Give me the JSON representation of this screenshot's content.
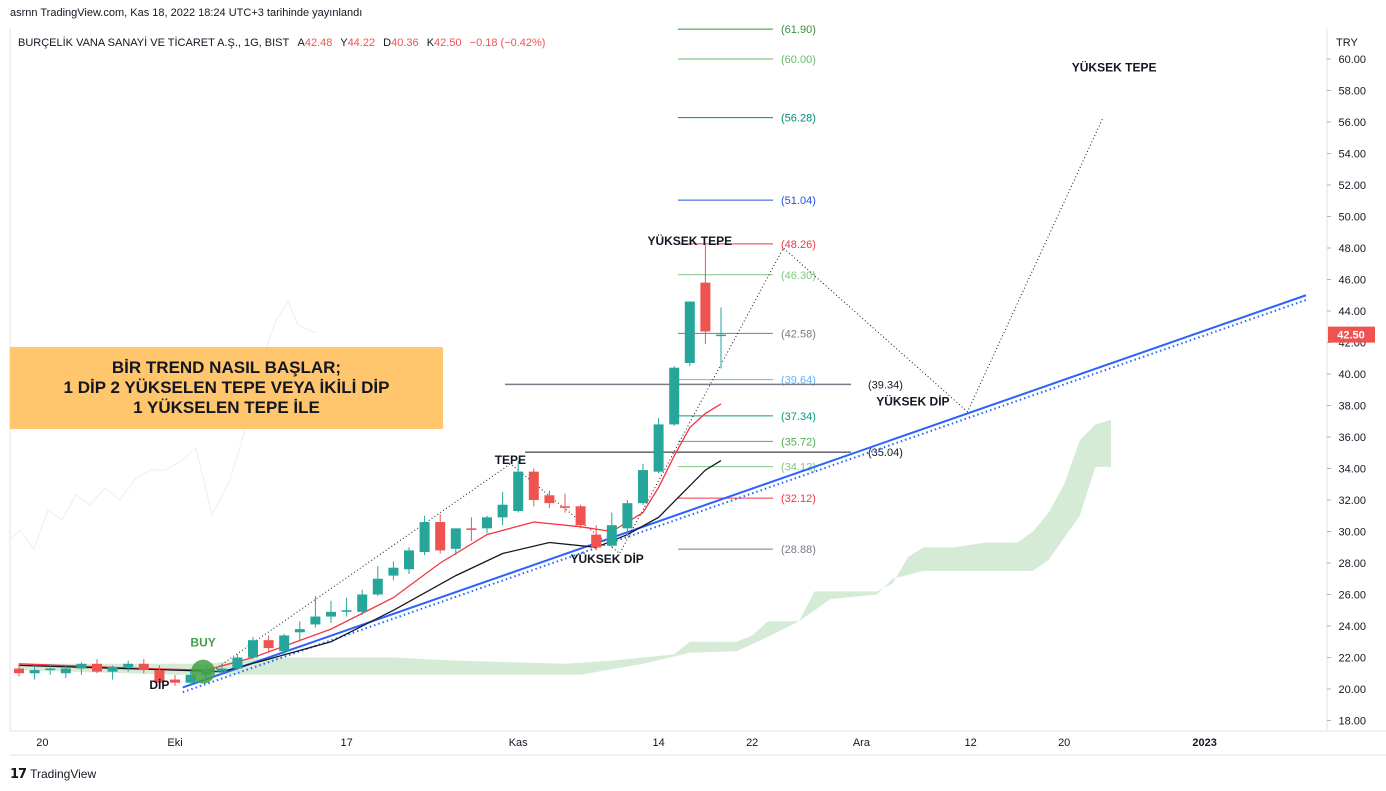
{
  "header": {
    "publisher": "asrnn TradingView.com, Kas 18, 2022 18:24 UTC+3 tarihinde yayınlandı"
  },
  "legend": {
    "symbol": "BURÇELİK VANA SANAYİ VE TİCARET A.Ş., 1G, BIST",
    "open_label": "A",
    "open": "42.48",
    "high_label": "Y",
    "high": "44.22",
    "low_label": "D",
    "low": "40.36",
    "close_label": "K",
    "close": "42.50",
    "change": "−0.18 (−0.42%)"
  },
  "footer": {
    "brand": "TradingView"
  },
  "callout": {
    "line1": "BİR TREND NASIL BAŞLAR;",
    "line2": "1 DİP 2 YÜKSELEN TEPE VEYA İKİLİ DİP",
    "line3": "1 YÜKSELEN TEPE İLE"
  },
  "colors": {
    "up": "#26a69a",
    "down": "#ef5350",
    "trendline": "#2962ff",
    "cloud": "#d6ebd6",
    "callout_bg": "#ffc66e",
    "last_price_bg": "#ef5350"
  },
  "chart_data": {
    "type": "candlestick",
    "currency": "TRY",
    "y_axis_ticks": [
      "18.00",
      "20.00",
      "22.00",
      "24.00",
      "26.00",
      "28.00",
      "30.00",
      "32.00",
      "34.00",
      "36.00",
      "38.00",
      "40.00",
      "42.00",
      "44.00",
      "46.00",
      "48.00",
      "50.00",
      "52.00",
      "54.00",
      "56.00",
      "58.00",
      "60.00"
    ],
    "ylim": [
      17,
      63
    ],
    "x_axis_ticks": [
      {
        "label": "20",
        "t": 1.5
      },
      {
        "label": "Eki",
        "t": 10
      },
      {
        "label": "17",
        "t": 21
      },
      {
        "label": "Kas",
        "t": 32
      },
      {
        "label": "14",
        "t": 41
      },
      {
        "label": "22",
        "t": 47
      },
      {
        "label": "Ara",
        "t": 54
      },
      {
        "label": "12",
        "t": 61
      },
      {
        "label": "20",
        "t": 67
      },
      {
        "label": "2023",
        "t": 76
      }
    ],
    "last_price": "42.50",
    "candles": [
      {
        "t": 0,
        "o": 21.3,
        "h": 21.6,
        "l": 20.8,
        "c": 21.0
      },
      {
        "t": 1,
        "o": 21.0,
        "h": 21.5,
        "l": 20.6,
        "c": 21.2
      },
      {
        "t": 2,
        "o": 21.2,
        "h": 21.6,
        "l": 20.9,
        "c": 21.3
      },
      {
        "t": 3,
        "o": 21.0,
        "h": 21.5,
        "l": 20.7,
        "c": 21.3
      },
      {
        "t": 4,
        "o": 21.3,
        "h": 21.7,
        "l": 20.9,
        "c": 21.6
      },
      {
        "t": 5,
        "o": 21.6,
        "h": 21.9,
        "l": 21.0,
        "c": 21.1
      },
      {
        "t": 6,
        "o": 21.1,
        "h": 21.5,
        "l": 20.6,
        "c": 21.4
      },
      {
        "t": 7,
        "o": 21.4,
        "h": 21.8,
        "l": 21.1,
        "c": 21.6
      },
      {
        "t": 8,
        "o": 21.6,
        "h": 21.9,
        "l": 21.0,
        "c": 21.2
      },
      {
        "t": 9,
        "o": 21.2,
        "h": 21.5,
        "l": 20.3,
        "c": 20.4
      },
      {
        "t": 10,
        "o": 20.6,
        "h": 20.9,
        "l": 20.2,
        "c": 20.4
      },
      {
        "t": 11,
        "o": 20.4,
        "h": 21.1,
        "l": 20.2,
        "c": 20.9
      },
      {
        "t": 12,
        "o": 20.9,
        "h": 21.5,
        "l": 20.7,
        "c": 21.2
      },
      {
        "t": 13,
        "o": 21.1,
        "h": 21.6,
        "l": 20.9,
        "c": 21.3
      },
      {
        "t": 14,
        "o": 21.3,
        "h": 22.2,
        "l": 21.2,
        "c": 22.0
      },
      {
        "t": 15,
        "o": 22.0,
        "h": 23.3,
        "l": 21.9,
        "c": 23.1
      },
      {
        "t": 16,
        "o": 23.1,
        "h": 23.4,
        "l": 22.3,
        "c": 22.6
      },
      {
        "t": 17,
        "o": 22.4,
        "h": 23.5,
        "l": 22.2,
        "c": 23.4
      },
      {
        "t": 18,
        "o": 23.6,
        "h": 24.3,
        "l": 23.1,
        "c": 23.8
      },
      {
        "t": 19,
        "o": 24.1,
        "h": 25.9,
        "l": 23.9,
        "c": 24.6
      },
      {
        "t": 20,
        "o": 24.6,
        "h": 25.6,
        "l": 24.2,
        "c": 24.9
      },
      {
        "t": 21,
        "o": 24.9,
        "h": 25.8,
        "l": 24.6,
        "c": 25.0
      },
      {
        "t": 22,
        "o": 24.9,
        "h": 26.3,
        "l": 24.7,
        "c": 26.0
      },
      {
        "t": 23,
        "o": 26.0,
        "h": 27.8,
        "l": 25.9,
        "c": 27.0
      },
      {
        "t": 24,
        "o": 27.2,
        "h": 28.1,
        "l": 26.9,
        "c": 27.7
      },
      {
        "t": 25,
        "o": 27.6,
        "h": 29.0,
        "l": 27.3,
        "c": 28.8
      },
      {
        "t": 26,
        "o": 28.7,
        "h": 31.0,
        "l": 28.5,
        "c": 30.6
      },
      {
        "t": 27,
        "o": 30.6,
        "h": 31.1,
        "l": 28.6,
        "c": 28.8
      },
      {
        "t": 28,
        "o": 28.9,
        "h": 30.1,
        "l": 28.5,
        "c": 30.2
      },
      {
        "t": 29,
        "o": 30.2,
        "h": 30.9,
        "l": 29.4,
        "c": 30.1
      },
      {
        "t": 30,
        "o": 30.2,
        "h": 31.0,
        "l": 29.9,
        "c": 30.9
      },
      {
        "t": 31,
        "o": 30.9,
        "h": 32.5,
        "l": 30.4,
        "c": 31.7
      },
      {
        "t": 32,
        "o": 31.3,
        "h": 34.5,
        "l": 31.2,
        "c": 33.8
      },
      {
        "t": 33,
        "o": 33.8,
        "h": 34.0,
        "l": 31.6,
        "c": 32.0
      },
      {
        "t": 34,
        "o": 32.3,
        "h": 32.6,
        "l": 31.5,
        "c": 31.8
      },
      {
        "t": 35,
        "o": 31.6,
        "h": 32.4,
        "l": 31.2,
        "c": 31.5
      },
      {
        "t": 36,
        "o": 31.6,
        "h": 31.7,
        "l": 30.2,
        "c": 30.4
      },
      {
        "t": 37,
        "o": 29.8,
        "h": 30.4,
        "l": 28.8,
        "c": 29.0
      },
      {
        "t": 38,
        "o": 29.1,
        "h": 31.2,
        "l": 29.0,
        "c": 30.4
      },
      {
        "t": 39,
        "o": 30.2,
        "h": 32.0,
        "l": 29.7,
        "c": 31.8
      },
      {
        "t": 40,
        "o": 31.8,
        "h": 34.3,
        "l": 31.7,
        "c": 33.9
      },
      {
        "t": 41,
        "o": 33.8,
        "h": 37.2,
        "l": 33.7,
        "c": 36.8
      },
      {
        "t": 42,
        "o": 36.8,
        "h": 40.5,
        "l": 36.7,
        "c": 40.4
      },
      {
        "t": 43,
        "o": 40.7,
        "h": 44.6,
        "l": 40.5,
        "c": 44.6
      },
      {
        "t": 44,
        "o": 45.8,
        "h": 48.2,
        "l": 41.9,
        "c": 42.7
      },
      {
        "t": 45,
        "o": 42.48,
        "h": 44.22,
        "l": 40.36,
        "c": 42.5
      }
    ],
    "fib_levels": [
      {
        "label": "(61.90)",
        "value": 61.9,
        "color": "#388e3c"
      },
      {
        "label": "(60.00)",
        "value": 60.0,
        "color": "#66bb6a"
      },
      {
        "label": "(56.28)",
        "value": 56.28,
        "color": "#00897b"
      },
      {
        "label": "(51.04)",
        "value": 51.04,
        "color": "#1e53e5"
      },
      {
        "label": "(48.26)",
        "value": 48.26,
        "color": "#f23645"
      },
      {
        "label": "(46.30)",
        "value": 46.3,
        "color": "#81c784"
      },
      {
        "label": "(42.58)",
        "value": 42.58,
        "color": "#787b86"
      },
      {
        "label": "(39.64)",
        "value": 39.64,
        "color": "#64b5f6"
      },
      {
        "label": "(37.34)",
        "value": 37.34,
        "color": "#089981"
      },
      {
        "label": "(35.72)",
        "value": 35.72,
        "color": "#4caf50"
      },
      {
        "label": "(34.12)",
        "value": 34.12,
        "color": "#81c784"
      },
      {
        "label": "(32.12)",
        "value": 32.12,
        "color": "#f23645"
      },
      {
        "label": "(28.88)",
        "value": 28.88,
        "color": "#787b86"
      }
    ],
    "horizontal_lines": [
      {
        "label": "(39.34)",
        "value": 39.34
      },
      {
        "label": "(35.04)",
        "value": 35.04
      }
    ],
    "annotations": [
      {
        "text": "DİP",
        "t": 9,
        "y": 20.0,
        "color": "#131722"
      },
      {
        "text": "BUY",
        "t": 11.8,
        "y": 22.7,
        "color": "#43a047"
      },
      {
        "text": "TEPE",
        "t": 31.5,
        "y": 34.3,
        "color": "#131722"
      },
      {
        "text": "YÜKSEK DİP",
        "t": 37.7,
        "y": 28.0,
        "color": "#131722"
      },
      {
        "text": "YÜKSEK TEPE",
        "t": 43,
        "y": 48.2,
        "color": "#131722"
      },
      {
        "text": "YÜKSEK DİP",
        "t": 57.3,
        "y": 38.0,
        "color": "#131722"
      },
      {
        "text": "YÜKSEK TEPE",
        "t": 70.2,
        "y": 59.2,
        "color": "#131722"
      }
    ]
  }
}
